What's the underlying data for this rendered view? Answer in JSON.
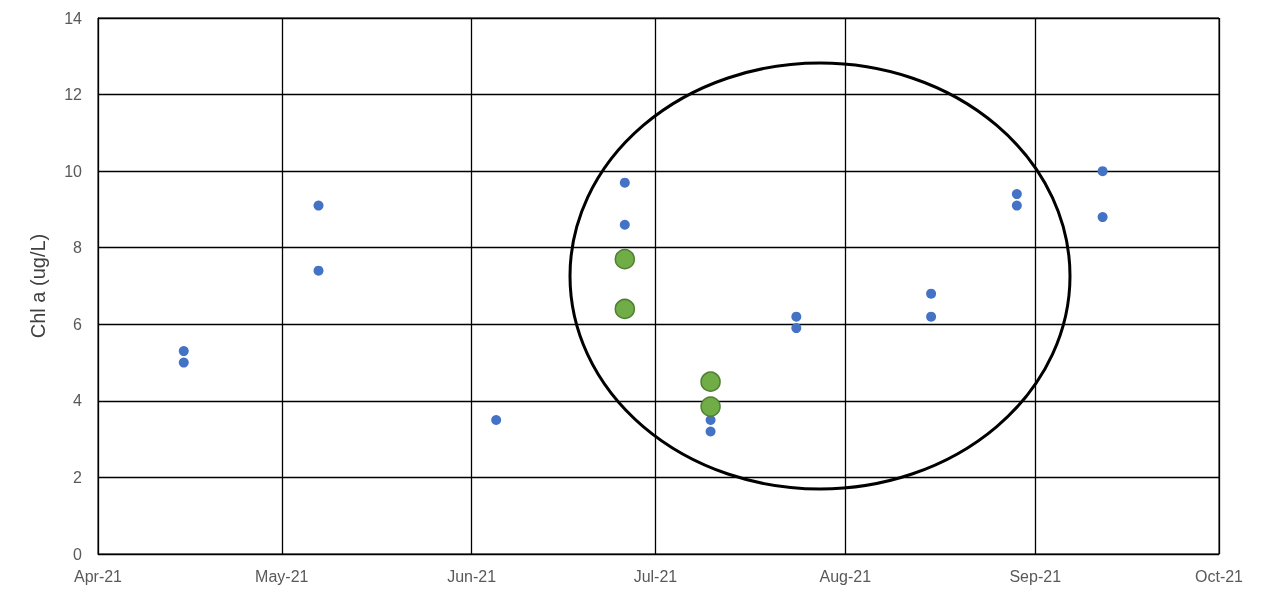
{
  "chart_data": {
    "type": "scatter",
    "ylabel": "Chl a (ug/L)",
    "xlim": [
      "2021-04-01",
      "2021-10-01"
    ],
    "xticks": [
      {
        "value": "2021-04-01",
        "label": "Apr-21"
      },
      {
        "value": "2021-05-01",
        "label": "May-21"
      },
      {
        "value": "2021-06-01",
        "label": "Jun-21"
      },
      {
        "value": "2021-07-01",
        "label": "Jul-21"
      },
      {
        "value": "2021-08-01",
        "label": "Aug-21"
      },
      {
        "value": "2021-09-01",
        "label": "Sep-21"
      },
      {
        "value": "2021-10-01",
        "label": "Oct-21"
      }
    ],
    "ylim": [
      0,
      14
    ],
    "yticks": [
      0,
      2,
      4,
      6,
      8,
      10,
      12,
      14
    ],
    "grid": true,
    "marker": "circle",
    "series": [
      {
        "color": "#4472c4",
        "x": [
          "2021-04-15",
          "2021-04-15",
          "2021-05-07",
          "2021-05-07",
          "2021-06-05",
          "2021-06-26",
          "2021-06-26",
          "2021-07-10",
          "2021-07-10",
          "2021-07-24",
          "2021-07-24",
          "2021-08-15",
          "2021-08-15",
          "2021-08-29",
          "2021-08-29",
          "2021-09-12",
          "2021-09-12"
        ],
        "values": [
          5.3,
          5.0,
          9.1,
          7.4,
          3.5,
          9.7,
          8.6,
          3.5,
          3.2,
          6.2,
          5.9,
          6.8,
          6.2,
          9.4,
          9.1,
          10.0,
          8.8
        ]
      },
      {
        "color": "#70ad47",
        "x": [
          "2021-06-26",
          "2021-06-26",
          "2021-07-10",
          "2021-07-10"
        ],
        "values": [
          7.7,
          6.4,
          4.5,
          3.85
        ]
      }
    ]
  }
}
